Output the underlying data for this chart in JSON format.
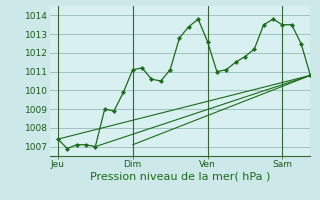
{
  "xlabel": "Pression niveau de la mer( hPa )",
  "bg_color": "#cce8e8",
  "plot_bg_color": "#d8f0f0",
  "grid_color": "#99bbbb",
  "line_color": "#1a6b1a",
  "vline_color": "#336633",
  "ylim": [
    1006.5,
    1014.5
  ],
  "yticks": [
    1007,
    1008,
    1009,
    1010,
    1011,
    1012,
    1013,
    1014
  ],
  "day_labels": [
    "Jeu",
    "Dim",
    "Ven",
    "Sam"
  ],
  "day_positions": [
    0,
    72,
    144,
    216
  ],
  "xlim": [
    -8,
    243
  ],
  "main_line_x": [
    0,
    9,
    18,
    27,
    36,
    45,
    54,
    63,
    72,
    81,
    90,
    99,
    108,
    117,
    126,
    135,
    144,
    153,
    162,
    171,
    180,
    189,
    198,
    207,
    216,
    225,
    234,
    243
  ],
  "main_line_y": [
    1007.4,
    1006.9,
    1007.1,
    1007.1,
    1007.0,
    1009.0,
    1008.9,
    1009.9,
    1011.1,
    1011.2,
    1010.6,
    1010.5,
    1011.1,
    1012.8,
    1013.4,
    1013.8,
    1012.6,
    1011.0,
    1011.1,
    1011.5,
    1011.8,
    1012.2,
    1013.5,
    1013.8,
    1013.5,
    1013.5,
    1012.5,
    1010.8
  ],
  "trend_lines": [
    {
      "x0": 0,
      "y0": 1007.4,
      "x1": 243,
      "y1": 1010.8
    },
    {
      "x0": 36,
      "y0": 1007.0,
      "x1": 243,
      "y1": 1010.8
    },
    {
      "x0": 72,
      "y0": 1007.1,
      "x1": 243,
      "y1": 1010.8
    }
  ],
  "xlabel_fontsize": 8,
  "tick_fontsize": 6.5,
  "xlabel_color": "#1a6b1a"
}
